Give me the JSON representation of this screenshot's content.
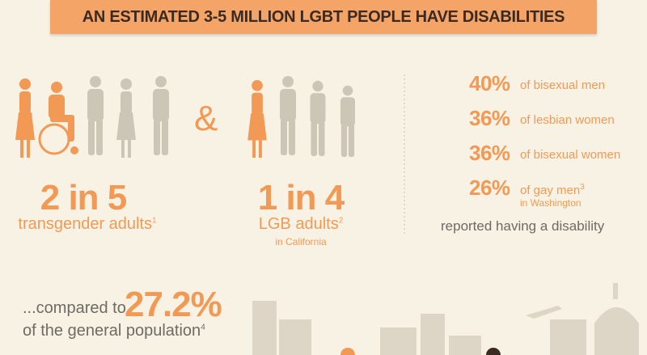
{
  "title": "AN ESTIMATED 3-5 MILLION LGBT PEOPLE HAVE DISABILITIES",
  "groups": [
    {
      "stat": "2 in 5",
      "label": "transgender adults",
      "note": "1"
    },
    {
      "stat": "1 in 4",
      "label": "LGB adults",
      "note": "2",
      "sublabel": "in California"
    }
  ],
  "connector": "&",
  "list": {
    "items": [
      {
        "stat": "40%",
        "label": "of bisexual men"
      },
      {
        "stat": "36%",
        "label": "of lesbian women"
      },
      {
        "stat": "36%",
        "label": "of bisexual women"
      },
      {
        "stat": "26%",
        "label": "of gay men",
        "note": "3",
        "sublabel": "in Washington"
      }
    ],
    "footer": "reported having a disability"
  },
  "comparison": {
    "prefix": "...compared to",
    "stat": "27.2%",
    "label": "of the general population",
    "note": "4"
  }
}
